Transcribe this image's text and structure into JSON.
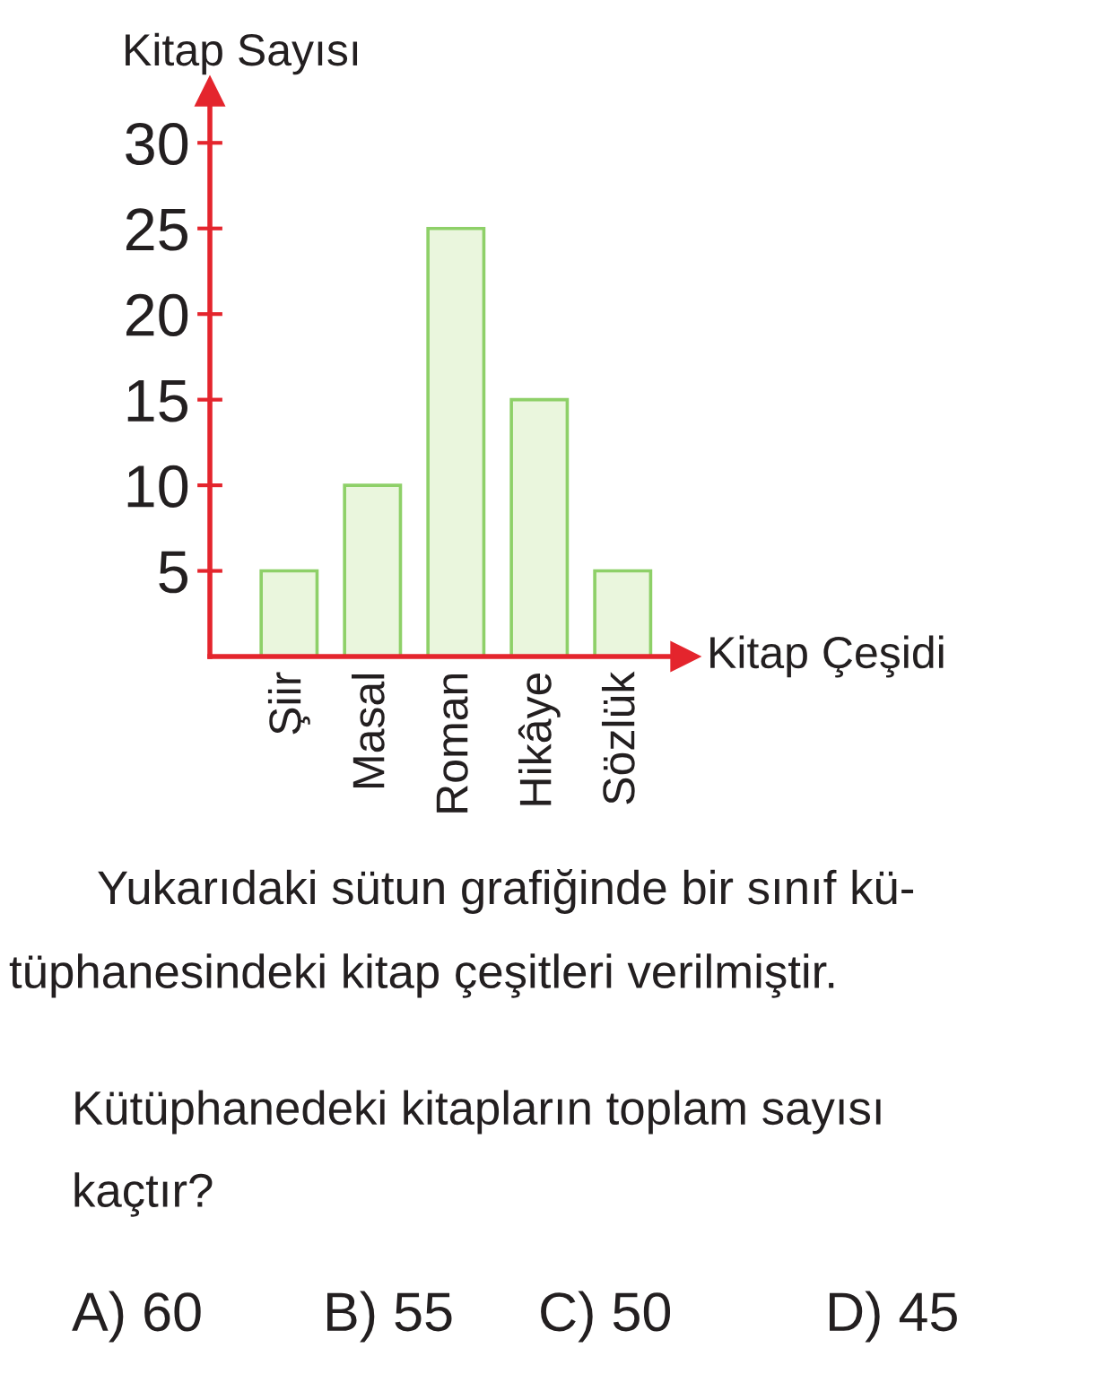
{
  "chart_data": {
    "type": "bar",
    "categories": [
      "Şiir",
      "Masal",
      "Roman",
      "Hikâye",
      "Sözlük"
    ],
    "values": [
      5,
      10,
      25,
      15,
      5
    ],
    "color": "#eaf6dd",
    "xlabel": "Kitap Çeşidi",
    "ylabel": "Kitap Sayısı",
    "ylim": [
      0,
      33
    ],
    "yticks": [
      5,
      10,
      15,
      20,
      25,
      30
    ],
    "annotations": [
      "Yukarıdaki sütun grafiğinde bir sınıf kü-",
      "tüphanesindeki kitap çeşitleri verilmiştir.",
      "Kütüphanedeki kitapların toplam sayısı",
      "kaçtır?",
      "A) 60",
      "B) 55",
      "C) 50",
      "D) 45"
    ]
  }
}
